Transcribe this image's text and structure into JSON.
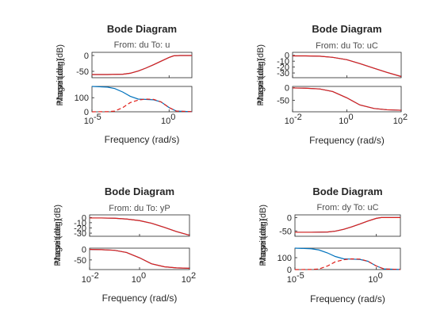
{
  "figure": {
    "series_colors": {
      "system": "#0072bd",
      "model": "#e0201b"
    }
  },
  "chart_data": [
    {
      "type": "line",
      "title": "Bode Diagram",
      "subtitle": "From: du  To: u",
      "xlabel": "Frequency (rad/s)",
      "xscale": "log",
      "xlim": [
        1e-05,
        30
      ],
      "xticks": [
        1e-05,
        1
      ],
      "xtick_labels": [
        {
          "base": "10",
          "exp": "-5"
        },
        {
          "base": "10",
          "exp": "0"
        }
      ],
      "magnitude": {
        "ylabel": "Magnitude (dB)",
        "ylim": [
          -70,
          10
        ],
        "yticks": [
          0,
          -50
        ],
        "ytick_labels": [
          "0",
          "-50"
        ],
        "series": [
          {
            "style": "system",
            "x": [
              1e-05,
              0.0001,
              0.001,
              0.003,
              0.01,
              0.03,
              0.1,
              0.3,
              1,
              2,
              5,
              30
            ],
            "y": [
              -60,
              -60,
              -59,
              -56,
              -49,
              -40,
              -29,
              -18,
              -6,
              -1,
              0,
              0
            ]
          },
          {
            "style": "model",
            "x": [
              1e-05,
              0.0001,
              0.001,
              0.003,
              0.01,
              0.03,
              0.1,
              0.3,
              1,
              2,
              5,
              30
            ],
            "y": [
              -60,
              -60,
              -59,
              -56,
              -49,
              -40,
              -29,
              -18,
              -6,
              -1,
              0,
              0
            ]
          }
        ]
      },
      "phase": {
        "ylabel": "Phase (deg)",
        "ylim": [
          0,
          180
        ],
        "yticks": [
          100,
          0
        ],
        "ytick_labels": [
          "100",
          "0"
        ],
        "series": [
          {
            "style": "system",
            "x": [
              1e-05,
              0.0001,
              0.0003,
              0.001,
              0.003,
              0.01,
              0.03,
              0.1,
              0.3,
              1,
              3,
              30
            ],
            "y": [
              180,
              175,
              165,
              140,
              110,
              90,
              88,
              85,
              70,
              30,
              5,
              1
            ]
          },
          {
            "style": "model-dashed",
            "x": [
              1e-05,
              0.0001,
              0.0003,
              0.001,
              0.003,
              0.01,
              0.03,
              0.1,
              0.3,
              1,
              3,
              30
            ],
            "y": [
              0,
              1,
              5,
              30,
              65,
              83,
              90,
              88,
              70,
              30,
              5,
              1
            ]
          }
        ]
      }
    },
    {
      "type": "line",
      "title": "Bode Diagram",
      "subtitle": "From: du  To: uC",
      "xlabel": "Frequency (rad/s)",
      "xscale": "log",
      "xlim": [
        0.01,
        100
      ],
      "xticks": [
        0.01,
        1,
        100
      ],
      "xtick_labels": [
        {
          "base": "10",
          "exp": "-2"
        },
        {
          "base": "10",
          "exp": "0"
        },
        {
          "base": "10",
          "exp": "2"
        }
      ],
      "magnitude": {
        "ylabel": "Magnitude (dB)",
        "ylim": [
          -38,
          5
        ],
        "yticks": [
          0,
          -10,
          -20,
          -30
        ],
        "ytick_labels": [
          "0",
          "-10",
          "-20",
          "-30"
        ],
        "series": [
          {
            "style": "system",
            "x": [
              0.01,
              0.03,
              0.1,
              0.3,
              1,
              3,
              10,
              30,
              100
            ],
            "y": [
              -1,
              -1,
              -1.5,
              -3.5,
              -7.5,
              -14,
              -22,
              -29,
              -36
            ]
          },
          {
            "style": "model",
            "x": [
              0.01,
              0.03,
              0.1,
              0.3,
              1,
              3,
              10,
              30,
              100
            ],
            "y": [
              -1,
              -1,
              -1.5,
              -3.5,
              -7.5,
              -14,
              -22,
              -29,
              -36
            ]
          }
        ]
      },
      "phase": {
        "ylabel": "Phase (deg)",
        "ylim": [
          -95,
          5
        ],
        "yticks": [
          0,
          -50
        ],
        "ytick_labels": [
          "0",
          "-50"
        ],
        "series": [
          {
            "style": "system",
            "x": [
              0.01,
              0.03,
              0.1,
              0.3,
              1,
              3,
              10,
              30,
              100
            ],
            "y": [
              -1,
              -2,
              -5,
              -15,
              -40,
              -68,
              -82,
              -87,
              -89
            ]
          },
          {
            "style": "model",
            "x": [
              0.01,
              0.03,
              0.1,
              0.3,
              1,
              3,
              10,
              30,
              100
            ],
            "y": [
              -1,
              -2,
              -5,
              -15,
              -40,
              -68,
              -82,
              -87,
              -89
            ]
          }
        ]
      }
    },
    {
      "type": "line",
      "title": "Bode Diagram",
      "subtitle": "From: du  To: yP",
      "xlabel": "Frequency (rad/s)",
      "xscale": "log",
      "xlim": [
        0.01,
        100
      ],
      "xticks": [
        0.01,
        1,
        100
      ],
      "xtick_labels": [
        {
          "base": "10",
          "exp": "-2"
        },
        {
          "base": "10",
          "exp": "0"
        },
        {
          "base": "10",
          "exp": "2"
        }
      ],
      "magnitude": {
        "ylabel": "Magnitude (dB)",
        "ylim": [
          -36,
          5
        ],
        "yticks": [
          0,
          -10,
          -20,
          -30
        ],
        "ytick_labels": [
          "0",
          "-10",
          "-20",
          "-30"
        ],
        "series": [
          {
            "style": "system",
            "x": [
              0.01,
              0.03,
              0.1,
              0.3,
              1,
              3,
              10,
              30,
              100
            ],
            "y": [
              -1,
              -1,
              -1.5,
              -3,
              -6,
              -11,
              -19,
              -27,
              -34
            ]
          },
          {
            "style": "model",
            "x": [
              0.01,
              0.03,
              0.1,
              0.3,
              1,
              3,
              10,
              30,
              100
            ],
            "y": [
              -1,
              -1,
              -1.5,
              -3,
              -6,
              -11,
              -19,
              -27,
              -34
            ]
          }
        ]
      },
      "phase": {
        "ylabel": "Phase (deg)",
        "ylim": [
          -95,
          5
        ],
        "yticks": [
          0,
          -50
        ],
        "ytick_labels": [
          "0",
          "-50"
        ],
        "series": [
          {
            "style": "system",
            "x": [
              0.01,
              0.03,
              0.1,
              0.3,
              1,
              3,
              10,
              30,
              100
            ],
            "y": [
              -1,
              -2,
              -5,
              -15,
              -40,
              -68,
              -82,
              -87,
              -89
            ]
          },
          {
            "style": "model",
            "x": [
              0.01,
              0.03,
              0.1,
              0.3,
              1,
              3,
              10,
              30,
              100
            ],
            "y": [
              -1,
              -2,
              -5,
              -15,
              -40,
              -68,
              -82,
              -87,
              -89
            ]
          }
        ]
      }
    },
    {
      "type": "line",
      "title": "Bode Diagram",
      "subtitle": "From: dy  To: uC",
      "xlabel": "Frequency (rad/s)",
      "xscale": "log",
      "xlim": [
        1e-05,
        30
      ],
      "xticks": [
        1e-05,
        1
      ],
      "xtick_labels": [
        {
          "base": "10",
          "exp": "-5"
        },
        {
          "base": "10",
          "exp": "0"
        }
      ],
      "magnitude": {
        "ylabel": "Magnitude (dB)",
        "ylim": [
          -70,
          10
        ],
        "yticks": [
          0,
          -50
        ],
        "ytick_labels": [
          "0",
          "-50"
        ],
        "series": [
          {
            "style": "system",
            "x": [
              1e-05,
              0.0001,
              0.001,
              0.003,
              0.01,
              0.03,
              0.1,
              0.3,
              1,
              2,
              5,
              30
            ],
            "y": [
              -55,
              -55,
              -54,
              -51,
              -44,
              -35,
              -24,
              -13,
              -3,
              0,
              0,
              0
            ]
          },
          {
            "style": "model",
            "x": [
              1e-05,
              0.0001,
              0.001,
              0.003,
              0.01,
              0.03,
              0.1,
              0.3,
              1,
              2,
              5,
              30
            ],
            "y": [
              -55,
              -55,
              -54,
              -51,
              -44,
              -35,
              -24,
              -13,
              -3,
              0,
              0,
              0
            ]
          }
        ]
      },
      "phase": {
        "ylabel": "Phase (deg)",
        "ylim": [
          0,
          180
        ],
        "yticks": [
          100,
          0
        ],
        "ytick_labels": [
          "100",
          "0"
        ],
        "series": [
          {
            "style": "system",
            "x": [
              1e-05,
              0.0001,
              0.0003,
              0.001,
              0.003,
              0.01,
              0.03,
              0.1,
              0.3,
              1,
              3,
              30
            ],
            "y": [
              180,
              175,
              165,
              140,
              110,
              90,
              88,
              85,
              70,
              30,
              5,
              1
            ]
          },
          {
            "style": "model-dashed",
            "x": [
              1e-05,
              0.0001,
              0.0003,
              0.001,
              0.003,
              0.01,
              0.03,
              0.1,
              0.3,
              1,
              3,
              30
            ],
            "y": [
              0,
              1,
              5,
              30,
              65,
              83,
              90,
              88,
              70,
              30,
              5,
              1
            ]
          }
        ]
      }
    }
  ]
}
